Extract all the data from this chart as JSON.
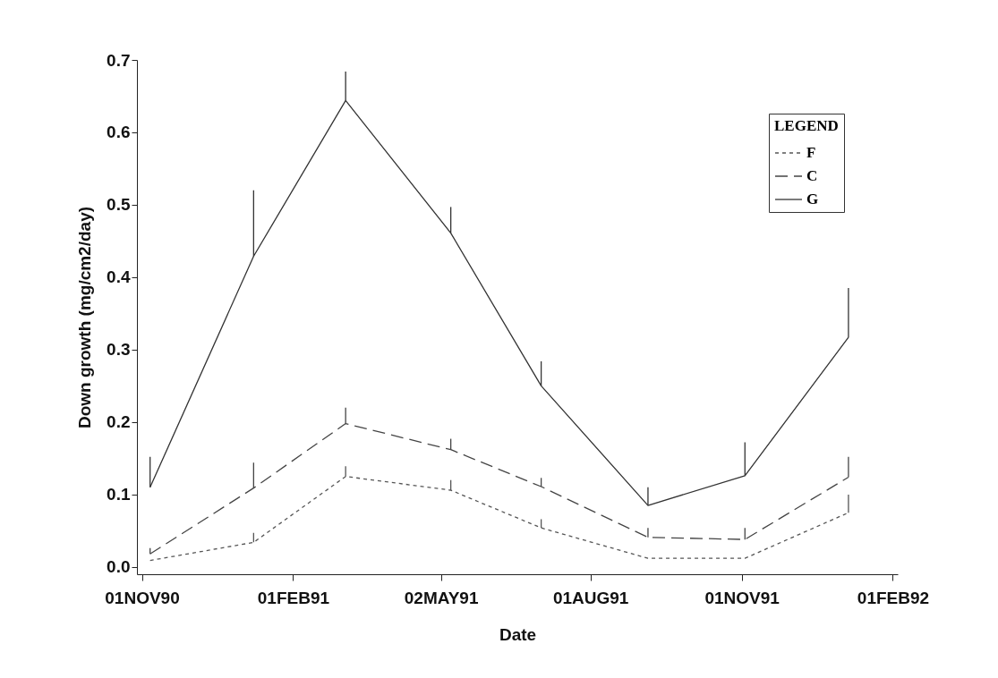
{
  "chart_data": {
    "type": "line",
    "xlabel": "Date",
    "ylabel": "Down growth  (mg/cm2/day)",
    "legend_title": "LEGEND",
    "legend": "top right",
    "grid": false,
    "xlim": [
      "1990-10-29",
      "1992-02-04"
    ],
    "ylim": [
      -0.01,
      0.7
    ],
    "xticks": [
      {
        "value": "1990-11-01",
        "label": "01NOV90"
      },
      {
        "value": "1991-02-01",
        "label": "01FEB91"
      },
      {
        "value": "1991-05-02",
        "label": "02MAY91"
      },
      {
        "value": "1991-08-01",
        "label": "01AUG91"
      },
      {
        "value": "1991-11-01",
        "label": "01NOV91"
      },
      {
        "value": "1992-02-01",
        "label": "01FEB92"
      }
    ],
    "yticks": [
      {
        "value": 0,
        "label": "0.0"
      },
      0.1,
      0.2,
      0.3,
      0.4,
      0.5,
      0.6,
      0.7
    ],
    "x": [
      "1990-11-06",
      "1991-01-08",
      "1991-03-05",
      "1991-05-08",
      "1991-07-02",
      "1991-09-05",
      "1991-11-03",
      "1992-01-05"
    ],
    "series": [
      {
        "name": "F",
        "color": "#555555",
        "line_style": "dotted",
        "values": [
          0.009,
          0.034,
          0.125,
          0.106,
          0.054,
          0.012,
          0.012,
          0.075
        ],
        "errors": [
          null,
          [
            0.034,
            0.047
          ],
          [
            0.125,
            0.139
          ],
          [
            0.106,
            0.12
          ],
          [
            0.054,
            0.066
          ],
          null,
          null,
          [
            0.075,
            0.1
          ]
        ]
      },
      {
        "name": "C",
        "color": "#444444",
        "line_style": "dashed",
        "values": [
          0.018,
          0.109,
          0.198,
          0.162,
          0.111,
          0.041,
          0.038,
          0.124
        ],
        "errors": [
          [
            0.018,
            0.026
          ],
          [
            0.109,
            0.144
          ],
          [
            0.198,
            0.22
          ],
          [
            0.162,
            0.177
          ],
          [
            0.111,
            0.123
          ],
          [
            0.041,
            0.054
          ],
          [
            0.038,
            0.054
          ],
          [
            0.124,
            0.152
          ]
        ]
      },
      {
        "name": "G",
        "color": "#333333",
        "line_style": "solid",
        "values": [
          0.11,
          0.429,
          0.644,
          0.461,
          0.25,
          0.085,
          0.126,
          0.317
        ],
        "errors": [
          [
            0.11,
            0.152
          ],
          [
            0.429,
            0.52
          ],
          [
            0.644,
            0.684
          ],
          [
            0.461,
            0.497
          ],
          [
            0.25,
            0.284
          ],
          [
            0.085,
            0.11
          ],
          [
            0.126,
            0.172
          ],
          [
            0.317,
            0.385
          ]
        ]
      }
    ]
  }
}
